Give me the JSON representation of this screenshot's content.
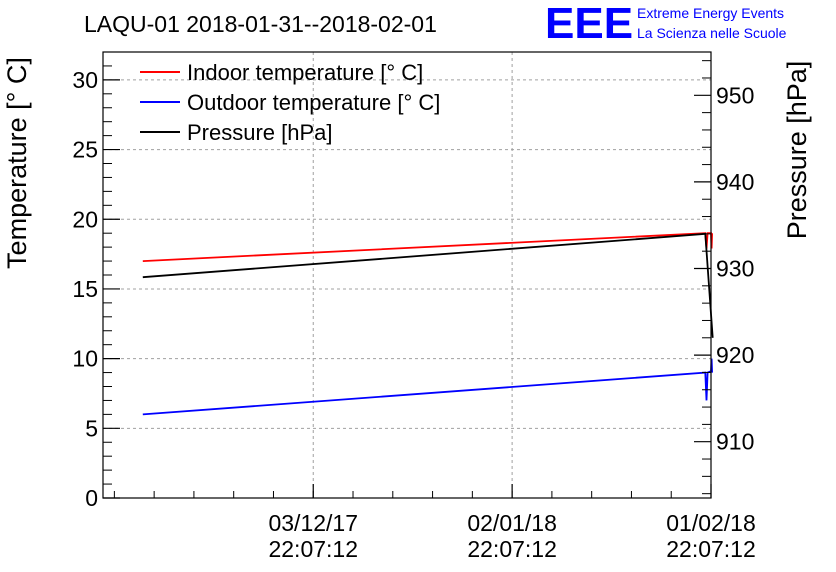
{
  "chart_data": {
    "type": "line",
    "title": "LAQU-01 2018-01-31--2018-02-01",
    "logo": {
      "text": "EEE",
      "line1": "Extreme Energy Events",
      "line2": "La Scienza nelle Scuole",
      "color": "#0000ff"
    },
    "ylabel_left": "Temperature [° C]",
    "ylabel_right": "Pressure [hPa]",
    "xlim": [
      -70,
      1000
    ],
    "ylim_left": [
      0,
      32
    ],
    "ylim_right": [
      903.5,
      955
    ],
    "left_ticks": [
      0,
      5,
      10,
      15,
      20,
      25,
      30
    ],
    "right_ticks": [
      910,
      920,
      930,
      940,
      950
    ],
    "x_ticks": [
      {
        "x": 300,
        "date": "03/12/17",
        "time": "22:07:12"
      },
      {
        "x": 650,
        "date": "02/01/18",
        "time": "22:07:12"
      },
      {
        "x": 1000,
        "date": "01/02/18",
        "time": "22:07:12"
      }
    ],
    "grid": true,
    "legend_position": "top-left",
    "series": [
      {
        "name": "Indoor temperature [° C]",
        "color": "#ff0000",
        "axis": "left",
        "points": [
          [
            0,
            17.0
          ],
          [
            990,
            19.0
          ],
          [
            992,
            17.9
          ],
          [
            994,
            19.0
          ],
          [
            1000,
            19.0
          ],
          [
            1001,
            17.9
          ],
          [
            1002,
            19.0
          ]
        ]
      },
      {
        "name": "Outdoor temperature [° C]",
        "color": "#0000ff",
        "axis": "left",
        "points": [
          [
            0,
            6.0
          ],
          [
            990,
            9.0
          ],
          [
            992,
            7.0
          ],
          [
            994,
            9.0
          ],
          [
            1000,
            9.1
          ],
          [
            1001,
            10.0
          ],
          [
            1002,
            9.0
          ]
        ]
      },
      {
        "name": "Pressure [hPa]",
        "color": "#000000",
        "axis": "right",
        "points": [
          [
            0,
            929.0
          ],
          [
            990,
            934.0
          ],
          [
            1003,
            922.0
          ]
        ]
      }
    ]
  }
}
